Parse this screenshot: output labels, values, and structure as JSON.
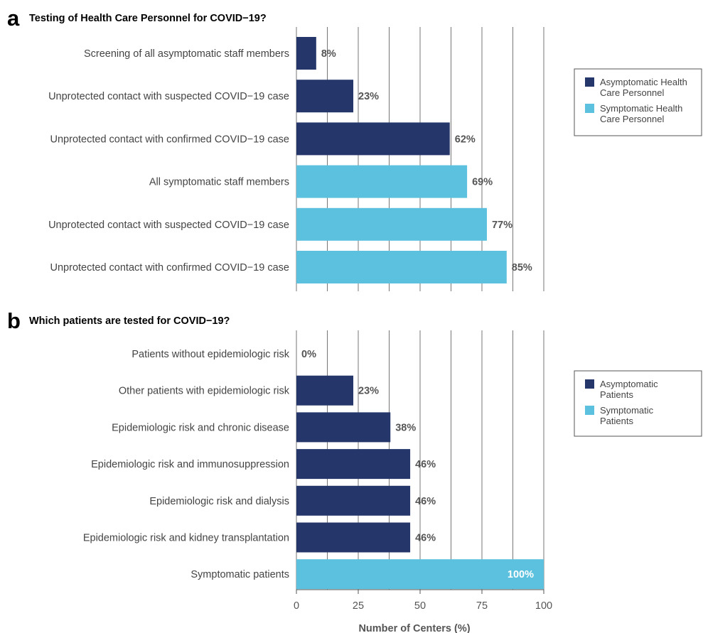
{
  "colors": {
    "asymptomatic": "#25366b",
    "symptomatic": "#5bc1de"
  },
  "chart_data": [
    {
      "type": "bar",
      "orientation": "horizontal",
      "panel": "a",
      "title": "Testing of Health Care Personnel for COVID−19?",
      "categories": [
        "Screening of all asymptomatic staff members",
        "Unprotected contact with suspected COVID−19 case",
        "Unprotected contact with confirmed COVID−19 case",
        "All symptomatic staff members",
        "Unprotected contact with suspected COVID−19 case",
        "Unprotected contact with confirmed COVID−19 case"
      ],
      "values": [
        8,
        23,
        62,
        69,
        77,
        85
      ],
      "value_labels": [
        "8%",
        "23%",
        "62%",
        "69%",
        "77%",
        "85%"
      ],
      "groups": [
        "asymptomatic",
        "asymptomatic",
        "asymptomatic",
        "symptomatic",
        "symptomatic",
        "symptomatic"
      ],
      "legend": [
        {
          "group": "asymptomatic",
          "lines": [
            "Asymptomatic Health",
            "Care Personnel"
          ]
        },
        {
          "group": "symptomatic",
          "lines": [
            "Symptomatic Health",
            "Care Personnel"
          ]
        }
      ],
      "legend_placement": "right",
      "xlim": [
        0,
        100
      ],
      "grid": true
    },
    {
      "type": "bar",
      "orientation": "horizontal",
      "panel": "b",
      "title": "Which patients are tested for COVID−19?",
      "categories": [
        "Patients without epidemiologic risk",
        "Other patients with epidemiologic risk",
        "Epidemiologic risk and chronic disease",
        "Epidemiologic risk and immunosuppression",
        "Epidemiologic risk and dialysis",
        "Epidemiologic risk and kidney transplantation",
        "Symptomatic patients"
      ],
      "values": [
        0,
        23,
        38,
        46,
        46,
        46,
        100
      ],
      "value_labels": [
        "0%",
        "23%",
        "38%",
        "46%",
        "46%",
        "46%",
        "100%"
      ],
      "groups": [
        "asymptomatic",
        "asymptomatic",
        "asymptomatic",
        "asymptomatic",
        "asymptomatic",
        "asymptomatic",
        "symptomatic"
      ],
      "legend": [
        {
          "group": "asymptomatic",
          "lines": [
            "Asymptomatic",
            "Patients"
          ]
        },
        {
          "group": "symptomatic",
          "lines": [
            "Symptomatic",
            "Patients"
          ]
        }
      ],
      "legend_placement": "right",
      "xlim": [
        0,
        100
      ],
      "xticks": [
        0,
        25,
        50,
        75,
        100
      ],
      "xlabel": "Number of Centers (%)",
      "grid": true
    }
  ]
}
